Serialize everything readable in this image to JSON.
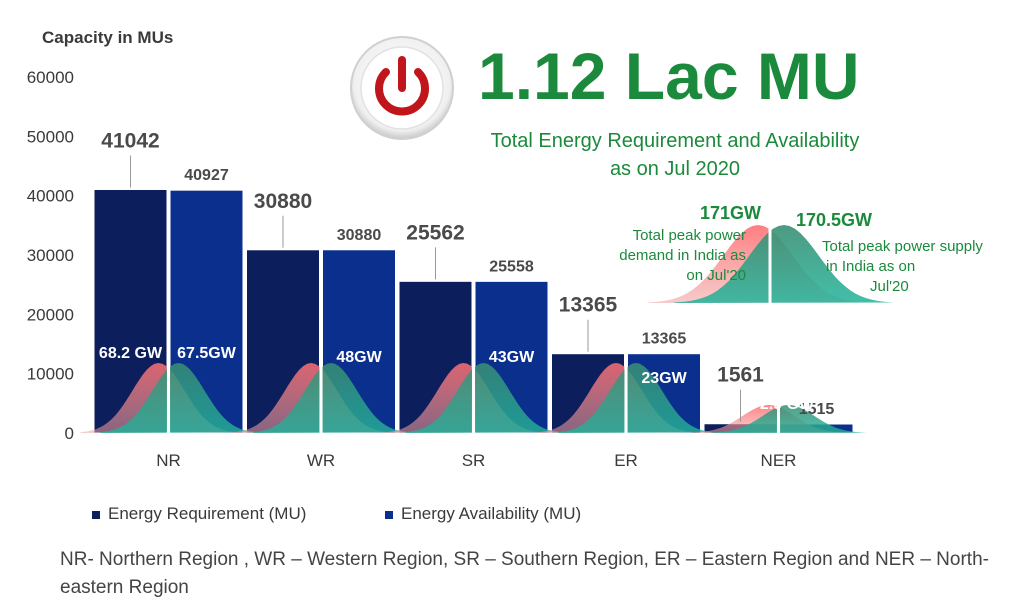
{
  "header": {
    "y_axis_label": "Capacity in MUs",
    "headline": "1.12 Lac MU",
    "subtitle_line1": "Total Energy Requirement and Availability",
    "subtitle_line2": "as on Jul 2020"
  },
  "icon": {
    "name": "power-icon",
    "color": "#c0161b"
  },
  "peak": {
    "demand_value": "171GW",
    "demand_label": [
      "Total peak power",
      "demand in India as",
      "on Jul'20"
    ],
    "supply_value": "170.5GW",
    "supply_label": [
      "Total peak power supply",
      "in India as on",
      "Jul'20"
    ]
  },
  "legend": {
    "requirement": "Energy Requirement (MU)",
    "availability": "Energy Availability (MU)"
  },
  "footnote": "NR- Northern Region , WR – Western Region, SR – Southern Region, ER – Eastern Region and NER – North-eastern Region",
  "colors": {
    "requirement": "#0c1f5c",
    "availability": "#0b2f8c",
    "accent_green": "#1b8a3c",
    "demand_curve": "#e8525a",
    "supply_curve": "#1fa58a"
  },
  "chart_data": {
    "type": "bar",
    "categories": [
      "NR",
      "WR",
      "SR",
      "ER",
      "NER"
    ],
    "series": [
      {
        "name": "Energy Requirement (MU)",
        "values": [
          41042,
          30880,
          25562,
          13365,
          1561
        ]
      },
      {
        "name": "Energy Availability (MU)",
        "values": [
          40927,
          30880,
          25558,
          13365,
          1515
        ]
      }
    ],
    "ylim": [
      0,
      60000
    ],
    "yticks": [
      0,
      10000,
      20000,
      30000,
      40000,
      50000,
      60000
    ],
    "ylabel": "Capacity in MUs",
    "regional_peak_labels": [
      "68.2 GW",
      "67.5GW",
      "48GW",
      "43GW",
      "23GW",
      "2.9 GW",
      "2.8 GW"
    ],
    "regional_peak_label_series": [
      0,
      1,
      1,
      1,
      1,
      0,
      1
    ],
    "regional_peak_label_category": [
      0,
      0,
      1,
      2,
      3,
      4,
      4
    ]
  }
}
